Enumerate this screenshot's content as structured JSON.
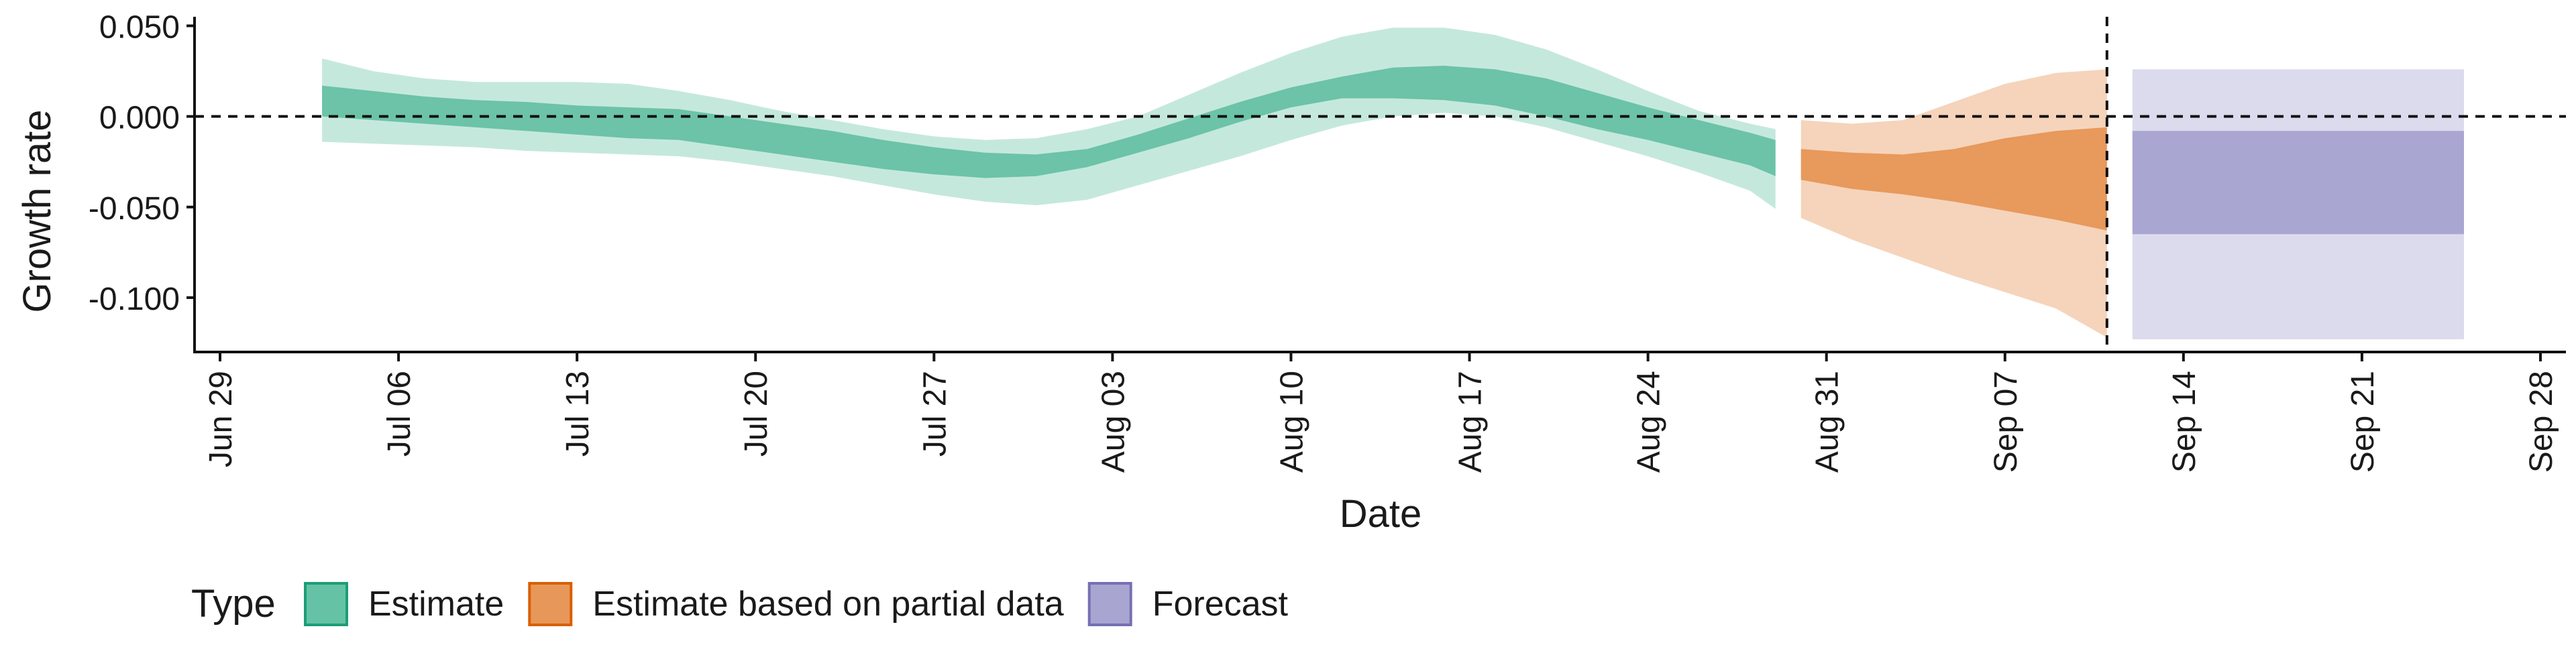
{
  "chart_data": {
    "type": "area",
    "title": "",
    "xlabel": "Date",
    "ylabel": "Growth rate",
    "x_type": "date",
    "xlim": [
      "2020-06-28",
      "2020-09-29"
    ],
    "ylim": [
      -0.13,
      0.055
    ],
    "x_ticks": [
      {
        "date": "2020-06-29",
        "label": "Jun 29"
      },
      {
        "date": "2020-07-06",
        "label": "Jul 06"
      },
      {
        "date": "2020-07-13",
        "label": "Jul 13"
      },
      {
        "date": "2020-07-20",
        "label": "Jul 20"
      },
      {
        "date": "2020-07-27",
        "label": "Jul 27"
      },
      {
        "date": "2020-08-03",
        "label": "Aug 03"
      },
      {
        "date": "2020-08-10",
        "label": "Aug 10"
      },
      {
        "date": "2020-08-17",
        "label": "Aug 17"
      },
      {
        "date": "2020-08-24",
        "label": "Aug 24"
      },
      {
        "date": "2020-08-31",
        "label": "Aug 31"
      },
      {
        "date": "2020-09-07",
        "label": "Sep 07"
      },
      {
        "date": "2020-09-14",
        "label": "Sep 14"
      },
      {
        "date": "2020-09-21",
        "label": "Sep 21"
      },
      {
        "date": "2020-09-28",
        "label": "Sep 28"
      }
    ],
    "y_ticks": [
      {
        "value": 0.05,
        "label": "0.050"
      },
      {
        "value": 0.0,
        "label": "0.000"
      },
      {
        "value": -0.05,
        "label": "-0.050"
      },
      {
        "value": -0.1,
        "label": "-0.100"
      }
    ],
    "reference_lines": [
      {
        "axis": "y",
        "value": 0.0,
        "style": "dashed"
      },
      {
        "axis": "x",
        "value": "2020-09-11",
        "style": "dashed"
      }
    ],
    "grid": false,
    "legend": {
      "title": "Type",
      "position": "bottom-left",
      "entries": [
        {
          "label": "Estimate",
          "fill": "#66c2a5",
          "stroke": "#1b9e77"
        },
        {
          "label": "Estimate based on partial data",
          "fill": "#e8975a",
          "stroke": "#d95f02"
        },
        {
          "label": "Forecast",
          "fill": "#a8a5d1",
          "stroke": "#7570b3"
        }
      ]
    },
    "series": [
      {
        "name": "Estimate",
        "inner_color": "#6cc3a7",
        "outer_color": "#c5e8dd",
        "dates": [
          "2020-07-03",
          "2020-07-05",
          "2020-07-07",
          "2020-07-09",
          "2020-07-11",
          "2020-07-13",
          "2020-07-15",
          "2020-07-17",
          "2020-07-19",
          "2020-07-21",
          "2020-07-23",
          "2020-07-25",
          "2020-07-27",
          "2020-07-29",
          "2020-07-31",
          "2020-08-02",
          "2020-08-04",
          "2020-08-06",
          "2020-08-08",
          "2020-08-10",
          "2020-08-12",
          "2020-08-14",
          "2020-08-16",
          "2020-08-18",
          "2020-08-20",
          "2020-08-22",
          "2020-08-24",
          "2020-08-26",
          "2020-08-28",
          "2020-08-29"
        ],
        "lower_outer": [
          -0.014,
          -0.015,
          -0.016,
          -0.017,
          -0.019,
          -0.02,
          -0.021,
          -0.022,
          -0.025,
          -0.029,
          -0.033,
          -0.038,
          -0.043,
          -0.047,
          -0.049,
          -0.046,
          -0.038,
          -0.03,
          -0.022,
          -0.013,
          -0.005,
          0.0,
          0.002,
          0.0,
          -0.006,
          -0.014,
          -0.022,
          -0.031,
          -0.041,
          -0.051
        ],
        "lower_inner": [
          0.0,
          -0.002,
          -0.004,
          -0.006,
          -0.008,
          -0.01,
          -0.012,
          -0.013,
          -0.017,
          -0.021,
          -0.025,
          -0.029,
          -0.032,
          -0.034,
          -0.033,
          -0.028,
          -0.02,
          -0.012,
          -0.003,
          0.005,
          0.01,
          0.01,
          0.009,
          0.006,
          0.0,
          -0.007,
          -0.013,
          -0.02,
          -0.027,
          -0.033
        ],
        "upper_inner": [
          0.017,
          0.014,
          0.011,
          0.009,
          0.008,
          0.006,
          0.005,
          0.004,
          0.0,
          -0.004,
          -0.008,
          -0.013,
          -0.017,
          -0.02,
          -0.021,
          -0.018,
          -0.01,
          -0.001,
          0.008,
          0.016,
          0.022,
          0.027,
          0.028,
          0.026,
          0.021,
          0.013,
          0.005,
          -0.002,
          -0.009,
          -0.013
        ],
        "upper_outer": [
          0.032,
          0.025,
          0.021,
          0.019,
          0.019,
          0.019,
          0.018,
          0.014,
          0.009,
          0.003,
          -0.002,
          -0.007,
          -0.011,
          -0.013,
          -0.012,
          -0.007,
          0.0,
          0.012,
          0.024,
          0.035,
          0.044,
          0.049,
          0.049,
          0.045,
          0.037,
          0.026,
          0.014,
          0.003,
          -0.004,
          -0.007
        ]
      },
      {
        "name": "Estimate based on partial data",
        "inner_color": "#e8995c",
        "outer_color": "#f5d4bb",
        "dates": [
          "2020-08-30",
          "2020-09-01",
          "2020-09-03",
          "2020-09-05",
          "2020-09-07",
          "2020-09-09",
          "2020-09-11"
        ],
        "lower_outer": [
          -0.056,
          -0.068,
          -0.078,
          -0.088,
          -0.097,
          -0.106,
          -0.122
        ],
        "lower_inner": [
          -0.035,
          -0.04,
          -0.043,
          -0.047,
          -0.052,
          -0.057,
          -0.063
        ],
        "upper_inner": [
          -0.018,
          -0.02,
          -0.021,
          -0.018,
          -0.012,
          -0.008,
          -0.006
        ],
        "upper_outer": [
          -0.002,
          -0.004,
          -0.002,
          0.008,
          0.018,
          0.024,
          0.026
        ]
      },
      {
        "name": "Forecast",
        "inner_color": "#a9a6d2",
        "outer_color": "#dcdbed",
        "dates": [
          "2020-09-12",
          "2020-09-25"
        ],
        "lower_outer": [
          -0.123,
          -0.123
        ],
        "lower_inner": [
          -0.065,
          -0.065
        ],
        "upper_inner": [
          -0.008,
          -0.008
        ],
        "upper_outer": [
          0.026,
          0.026
        ]
      }
    ]
  }
}
